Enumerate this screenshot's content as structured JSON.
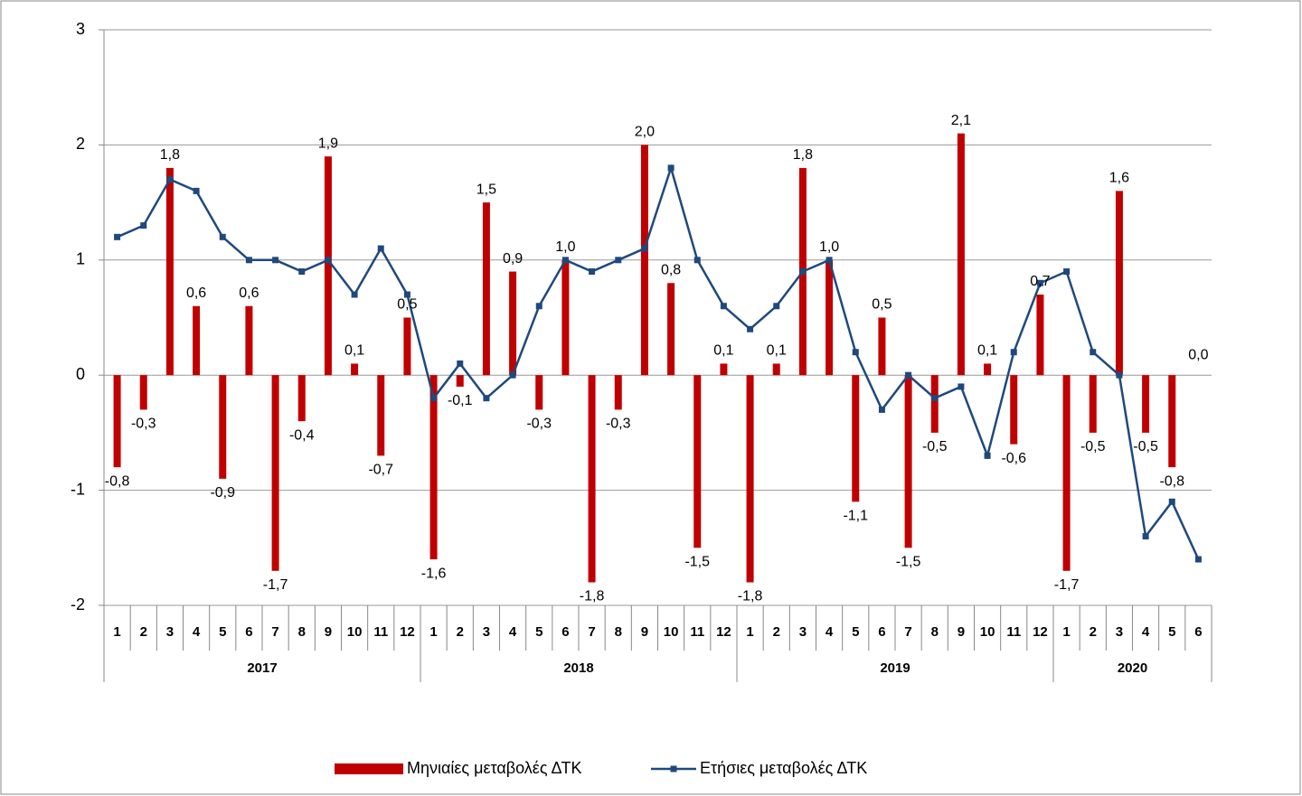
{
  "chart_data": {
    "type": "bar-line",
    "categories": [
      "1",
      "2",
      "3",
      "4",
      "5",
      "6",
      "7",
      "8",
      "9",
      "10",
      "11",
      "12",
      "1",
      "2",
      "3",
      "4",
      "5",
      "6",
      "7",
      "8",
      "9",
      "10",
      "11",
      "12",
      "1",
      "2",
      "3",
      "4",
      "5",
      "6",
      "7",
      "8",
      "9",
      "10",
      "11",
      "12",
      "1",
      "2",
      "3",
      "4",
      "5",
      "6"
    ],
    "groups": [
      "2017",
      "2018",
      "2019",
      "2020"
    ],
    "ylim": [
      -2,
      3
    ],
    "yticks": [
      -2,
      -1,
      0,
      1,
      2,
      3
    ],
    "grid": true,
    "series": [
      {
        "name": "Μηνιαίες μεταβολές ΔΤΚ",
        "type": "bar",
        "color": "#c00000",
        "values": [
          -0.8,
          -0.3,
          1.8,
          0.6,
          -0.9,
          0.6,
          -1.7,
          -0.4,
          1.9,
          0.1,
          -0.7,
          0.5,
          -1.6,
          -0.1,
          1.5,
          0.9,
          -0.3,
          1.0,
          -1.8,
          -0.3,
          2.0,
          0.8,
          -1.5,
          0.1,
          -1.8,
          0.1,
          1.8,
          1.0,
          -1.1,
          0.5,
          -1.5,
          -0.5,
          2.1,
          0.1,
          -0.6,
          0.7,
          -1.7,
          -0.5,
          1.6,
          -0.5,
          -0.8,
          0.0
        ],
        "value_labels": [
          "-0,8",
          "-0,3",
          "1,8",
          "0,6",
          "-0,9",
          "0,6",
          "-1,7",
          "-0,4",
          "1,9",
          "0,1",
          "-0,7",
          "0,5",
          "-1,6",
          "-0,1",
          "1,5",
          "0,9",
          "-0,3",
          "1,0",
          "-1,8",
          "-0,3",
          "2,0",
          "0,8",
          "-1,5",
          "0,1",
          "-1,8",
          "0,1",
          "1,8",
          "1,0",
          "-1,1",
          "0,5",
          "-1,5",
          "-0,5",
          "2,1",
          "0,1",
          "-0,6",
          "0,7",
          "-1,7",
          "-0,5",
          "1,6",
          "-0,5",
          "-0,8",
          "0,0"
        ]
      },
      {
        "name": "Ετήσιες μεταβολές ΔΤΚ",
        "type": "line",
        "color": "#1f497d",
        "values": [
          1.2,
          1.3,
          1.7,
          1.6,
          1.2,
          1.0,
          1.0,
          0.9,
          1.0,
          0.7,
          1.1,
          0.7,
          -0.2,
          0.1,
          -0.2,
          0.0,
          0.6,
          1.0,
          0.9,
          1.0,
          1.1,
          1.8,
          1.0,
          0.6,
          0.4,
          0.6,
          0.9,
          1.0,
          0.2,
          -0.3,
          0.0,
          -0.2,
          -0.1,
          -0.7,
          0.2,
          0.8,
          0.9,
          0.2,
          0.0,
          -1.4,
          -1.1,
          -1.6
        ]
      }
    ]
  }
}
